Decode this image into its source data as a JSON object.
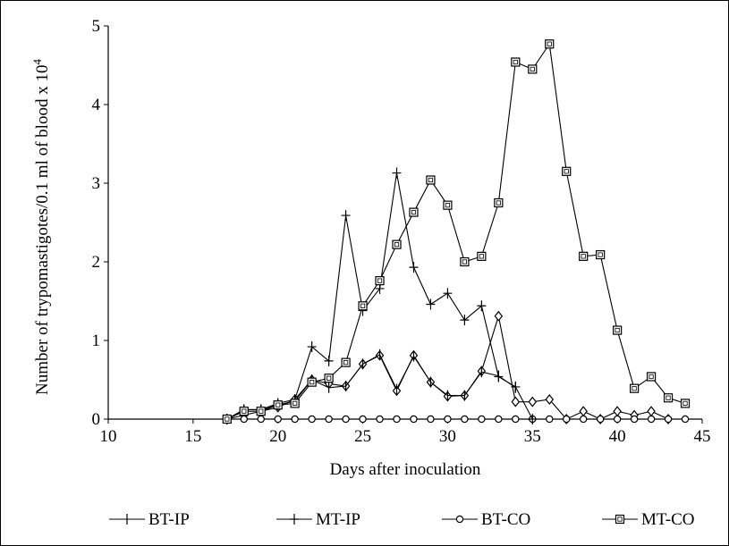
{
  "chart_data": {
    "type": "line",
    "title": "",
    "xlabel": "Days after inoculation",
    "ylabel": "Number of trypomastigotes/0.1 ml of blood x 10",
    "ylabel_superscript": "4",
    "xlim": [
      10,
      45
    ],
    "ylim": [
      0,
      5
    ],
    "xticks": [
      10,
      15,
      20,
      25,
      30,
      35,
      40,
      45
    ],
    "yticks": [
      0,
      1,
      2,
      3,
      4,
      5
    ],
    "grid": false,
    "legend_position": "bottom",
    "series": [
      {
        "name": "BT-IP",
        "marker": "vertical-tick",
        "x": [
          17,
          18,
          19,
          20,
          21,
          22,
          23,
          24,
          25,
          26,
          27,
          28,
          29,
          30,
          31,
          32,
          33,
          34
        ],
        "y": [
          0,
          0.12,
          0.12,
          0.18,
          0.23,
          0.5,
          0.4,
          0.42,
          0.7,
          0.82,
          0.38,
          0.8,
          0.47,
          0.3,
          0.3,
          0.6,
          0.55,
          0.4
        ]
      },
      {
        "name": "MT-IP",
        "marker": "plus",
        "x": [
          17,
          18,
          19,
          20,
          21,
          22,
          23,
          24,
          25,
          26,
          27,
          28,
          29,
          30,
          31,
          32,
          33,
          34,
          35
        ],
        "y": [
          0,
          0.12,
          0.12,
          0.2,
          0.25,
          0.92,
          0.74,
          2.59,
          1.38,
          1.66,
          3.13,
          1.93,
          1.46,
          1.6,
          1.26,
          1.44,
          0.54,
          0.41,
          0
        ]
      },
      {
        "name": "BT-CO",
        "marker": "circle",
        "x": [
          17,
          18,
          19,
          20,
          21,
          22,
          23,
          24,
          25,
          26,
          27,
          28,
          29,
          30,
          31,
          32,
          33,
          34,
          35,
          36,
          37,
          38,
          39,
          40,
          41,
          42,
          43,
          44
        ],
        "y": [
          0,
          0,
          0,
          0,
          0,
          0,
          0,
          0,
          0,
          0,
          0,
          0,
          0,
          0,
          0,
          0,
          0,
          0,
          0,
          0,
          0,
          0,
          0,
          0,
          0,
          0,
          0,
          0
        ]
      },
      {
        "name": "",
        "marker": "diamond",
        "x": [
          17,
          18,
          19,
          20,
          21,
          22,
          23,
          24,
          25,
          26,
          27,
          28,
          29,
          30,
          31,
          32,
          33,
          34,
          35,
          36,
          37,
          38,
          39,
          40,
          41,
          42,
          43
        ],
        "y": [
          0,
          0.05,
          0.1,
          0.15,
          0.25,
          0.5,
          0.45,
          0.42,
          0.7,
          0.81,
          0.36,
          0.81,
          0.47,
          0.29,
          0.3,
          0.61,
          1.31,
          0.22,
          0.22,
          0.25,
          0,
          0.1,
          0,
          0.1,
          0.05,
          0.1,
          0
        ]
      },
      {
        "name": "MT-CO",
        "marker": "square",
        "x": [
          17,
          18,
          19,
          20,
          21,
          22,
          23,
          24,
          25,
          26,
          27,
          28,
          29,
          30,
          31,
          32,
          33,
          34,
          35,
          36,
          37,
          38,
          39,
          40,
          41,
          42,
          43,
          44
        ],
        "y": [
          0,
          0.1,
          0.1,
          0.18,
          0.2,
          0.47,
          0.52,
          0.72,
          1.44,
          1.76,
          2.22,
          2.63,
          3.04,
          2.72,
          2.0,
          2.07,
          2.75,
          4.54,
          4.45,
          4.77,
          3.15,
          2.07,
          2.09,
          1.13,
          0.39,
          0.54,
          0.27,
          0.2
        ]
      }
    ]
  }
}
